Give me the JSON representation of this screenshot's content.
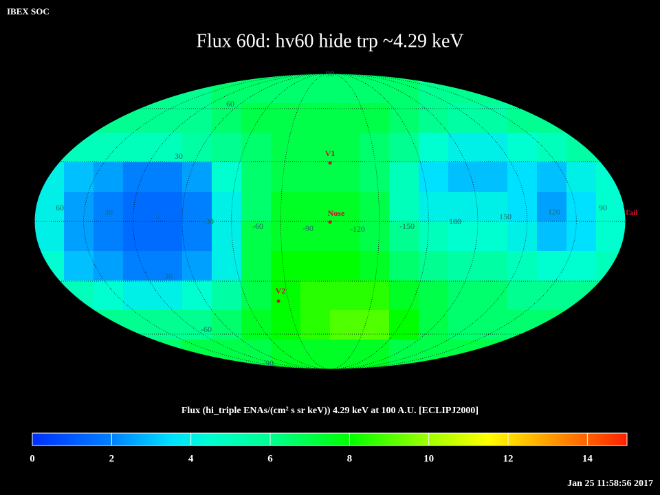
{
  "chart_data": {
    "type": "heatmap",
    "header": "IBEX SOC",
    "title": "Flux   60d: hv60 hide trp ~4.29 keV",
    "colorbar_label": "Flux (hi_triple ENAs/(cm² s sr keV))  4.29 keV at 100 A.U. [ECLIPJ2000]",
    "timestamp": "Jan 25 11:58:56 2017",
    "clim": [
      0,
      15
    ],
    "cticks": [
      0,
      2,
      4,
      6,
      8,
      10,
      12,
      14
    ],
    "colormap": [
      {
        "value": 0,
        "color": "#0030ff"
      },
      {
        "value": 2,
        "color": "#0080ff"
      },
      {
        "value": 3.5,
        "color": "#00e0ff"
      },
      {
        "value": 4.5,
        "color": "#00ffd0"
      },
      {
        "value": 6,
        "color": "#00ff90"
      },
      {
        "value": 8,
        "color": "#00ff00"
      },
      {
        "value": 10,
        "color": "#a0ff00"
      },
      {
        "value": 11.5,
        "color": "#ffff00"
      },
      {
        "value": 13,
        "color": "#ffa000"
      },
      {
        "value": 15,
        "color": "#ff2000"
      }
    ],
    "z": [
      [
        6,
        6,
        6,
        6,
        6,
        6,
        6.5,
        6.5,
        6.5,
        6.5,
        6.5,
        6.5,
        6.5,
        6,
        6,
        6,
        6,
        6,
        6,
        6
      ],
      [
        6,
        6,
        6,
        6,
        6,
        6,
        6.5,
        7,
        7,
        7,
        7,
        7,
        6.5,
        6,
        5.5,
        5.5,
        6,
        6,
        6,
        6
      ],
      [
        5,
        5,
        5,
        5,
        5,
        5.5,
        6,
        6.5,
        7,
        7,
        7,
        6.5,
        6,
        4.5,
        4,
        4,
        4.5,
        5,
        5.5,
        5.5
      ],
      [
        4,
        3,
        2.5,
        2,
        2,
        2.5,
        4.5,
        6.5,
        7,
        7,
        7,
        6.5,
        5,
        3.5,
        3,
        3,
        3.5,
        3,
        4,
        4.5
      ],
      [
        4,
        2.5,
        2,
        1.5,
        1.5,
        2,
        4,
        6.5,
        7.5,
        7.5,
        7.5,
        7,
        5,
        4,
        4,
        4,
        3.5,
        2.5,
        3.5,
        4.5
      ],
      [
        4,
        2.5,
        2,
        1.5,
        1.5,
        2,
        4,
        7,
        7.5,
        7.5,
        7.5,
        7,
        6,
        5,
        4.5,
        4.5,
        4,
        3,
        3.5,
        4.5
      ],
      [
        4.5,
        3,
        2.5,
        2,
        2,
        2.5,
        4,
        7,
        8,
        8,
        8,
        7.5,
        6.5,
        6,
        5.5,
        5.5,
        5,
        4.5,
        4.5,
        5
      ],
      [
        5,
        5,
        4.5,
        4,
        4,
        4.5,
        5.5,
        7,
        8,
        8.5,
        8.5,
        8.5,
        7.5,
        7,
        6.5,
        6.5,
        6,
        6,
        6,
        6
      ],
      [
        6,
        6,
        6,
        6,
        6,
        6,
        6.5,
        7.5,
        8,
        8.5,
        9,
        9,
        8,
        7,
        6.5,
        6.5,
        6.5,
        6.5,
        6,
        6
      ],
      [
        6.5,
        6.5,
        6.5,
        6.5,
        6.5,
        7,
        7,
        7,
        7.5,
        7.5,
        7.5,
        7.5,
        7,
        7,
        7,
        7,
        6.5,
        6.5,
        6.5,
        6.5
      ]
    ],
    "graticule_labels": [
      "90",
      "60",
      "30",
      "60",
      "30",
      "0",
      "-30",
      "-60",
      "-90",
      "-120",
      "-150",
      "180",
      "150",
      "120",
      "90",
      "30",
      "-60",
      "-90"
    ],
    "markers": [
      "V1",
      "Nose",
      "V2",
      "Tail"
    ]
  }
}
